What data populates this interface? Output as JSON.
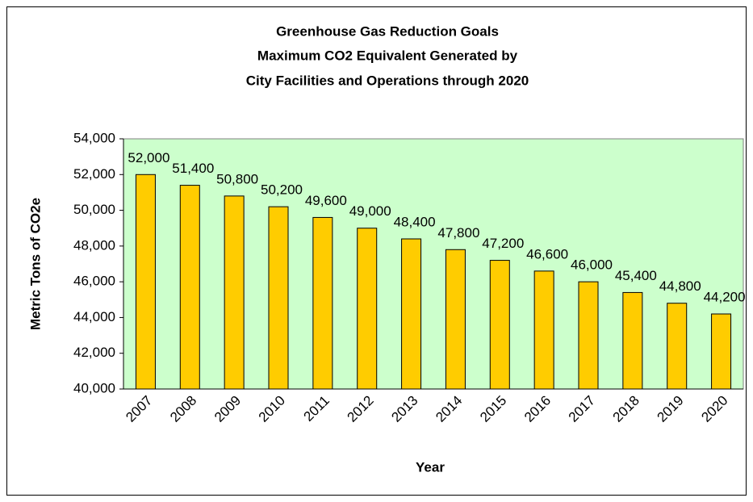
{
  "chart_data": {
    "type": "bar",
    "title": [
      "Greenhouse Gas Reduction Goals",
      "Maximum CO2 Equivalent Generated by",
      "City Facilities and Operations through 2020"
    ],
    "x_label": "Year",
    "y_label": "Metric Tons of CO2e",
    "categories": [
      "2007",
      "2008",
      "2009",
      "2010",
      "2011",
      "2012",
      "2013",
      "2014",
      "2015",
      "2016",
      "2017",
      "2018",
      "2019",
      "2020"
    ],
    "values": [
      52000,
      51400,
      50800,
      50200,
      49600,
      49000,
      48400,
      47800,
      47200,
      46600,
      46000,
      45400,
      44800,
      44200
    ],
    "value_labels": [
      "52,000",
      "51,400",
      "50,800",
      "50,200",
      "49,600",
      "49,000",
      "48,400",
      "47,800",
      "47,200",
      "46,600",
      "46,000",
      "45,400",
      "44,800",
      "44,200"
    ],
    "color": "#ffcc00",
    "plot_background": "#ccffcc",
    "ylim": [
      40000,
      54000
    ],
    "yticks": [
      {
        "value": 40000,
        "label": "40,000"
      },
      {
        "value": 42000,
        "label": "42,000"
      },
      {
        "value": 44000,
        "label": "44,000"
      },
      {
        "value": 46000,
        "label": "46,000"
      },
      {
        "value": 48000,
        "label": "48,000"
      },
      {
        "value": 50000,
        "label": "50,000"
      },
      {
        "value": 52000,
        "label": "52,000"
      },
      {
        "value": 54000,
        "label": "54,000"
      }
    ]
  }
}
